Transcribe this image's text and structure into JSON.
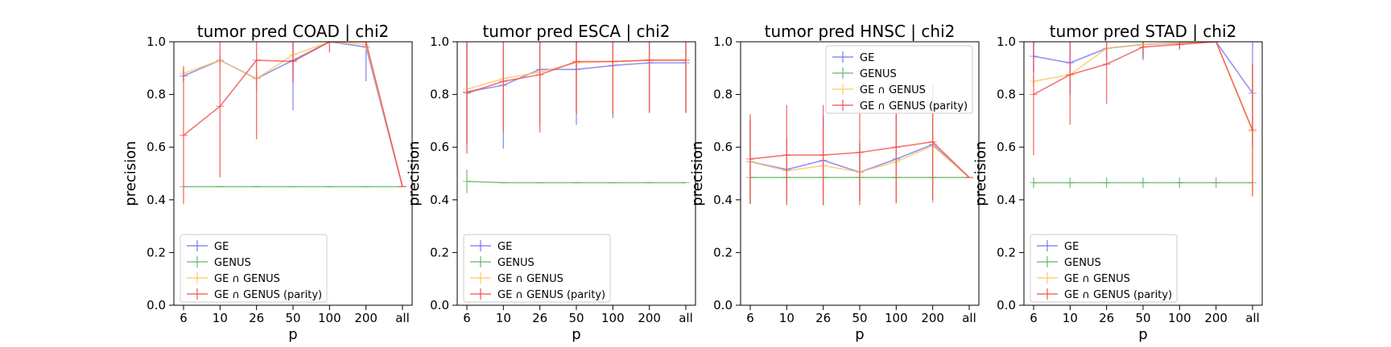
{
  "figure": {
    "categories": [
      "6",
      "10",
      "26",
      "50",
      "100",
      "200",
      "all"
    ],
    "yticks": [
      "0.0",
      "0.2",
      "0.4",
      "0.6",
      "0.8",
      "1.0"
    ],
    "ylim": [
      0,
      1
    ],
    "xlabel": "p",
    "ylabel": "precision",
    "colors": {
      "GE": "#6f6ff2",
      "GENUS": "#5fb35f",
      "GE ∩ GENUS": "#ffc35a",
      "GE ∩ GENUS (parity)": "#f24646"
    }
  },
  "chart_data": [
    {
      "type": "line",
      "title": "tumor pred COAD | chi2",
      "categories": [
        "6",
        "10",
        "26",
        "50",
        "100",
        "200",
        "all"
      ],
      "xlabel": "p",
      "ylabel": "precision",
      "ylim": [
        0,
        1
      ],
      "legend_position": "lower-left",
      "series": [
        {
          "name": "GE",
          "values": [
            0.87,
            0.93,
            0.86,
            0.93,
            1.0,
            0.98,
            0.45
          ],
          "err": [
            0.02,
            0.01,
            0.02,
            0.19,
            0.0,
            0.13,
            0.0
          ]
        },
        {
          "name": "GENUS",
          "values": [
            0.45,
            0.45,
            0.45,
            0.45,
            0.45,
            0.45,
            0.45
          ],
          "err": [
            0,
            0,
            0,
            0,
            0,
            0,
            0
          ]
        },
        {
          "name": "GE ∩ GENUS",
          "values": [
            0.88,
            0.93,
            0.86,
            0.95,
            1.0,
            0.99,
            0.45
          ],
          "err": [
            0.03,
            0.02,
            0.05,
            0.02,
            0.02,
            0.02,
            0.0
          ]
        },
        {
          "name": "GE ∩ GENUS (parity)",
          "values": [
            0.645,
            0.755,
            0.93,
            0.925,
            1.0,
            1.0,
            0.45
          ],
          "err": [
            0.26,
            0.27,
            0.3,
            0.08,
            0.04,
            0.02,
            0.0
          ]
        }
      ]
    },
    {
      "type": "line",
      "title": "tumor pred ESCA | chi2",
      "categories": [
        "6",
        "10",
        "26",
        "50",
        "100",
        "200",
        "all"
      ],
      "xlabel": "p",
      "ylabel": "precision",
      "ylim": [
        0,
        1
      ],
      "legend_position": "lower-left",
      "series": [
        {
          "name": "GE",
          "values": [
            0.81,
            0.835,
            0.895,
            0.895,
            0.91,
            0.92,
            0.92
          ],
          "err": [
            0.2,
            0.24,
            0.21,
            0.21,
            0.2,
            0.19,
            0.19
          ]
        },
        {
          "name": "GENUS",
          "values": [
            0.47,
            0.465,
            0.465,
            0.465,
            0.465,
            0.465,
            0.465
          ],
          "err": [
            0.045,
            0.0,
            0.0,
            0.0,
            0.0,
            0.0,
            0.0
          ]
        },
        {
          "name": "GE ∩ GENUS",
          "values": [
            0.82,
            0.86,
            0.885,
            0.92,
            0.925,
            0.93,
            0.93
          ],
          "err": [
            0.2,
            0.2,
            0.2,
            0.2,
            0.2,
            0.2,
            0.2
          ]
        },
        {
          "name": "GE ∩ GENUS (parity)",
          "values": [
            0.805,
            0.85,
            0.875,
            0.925,
            0.925,
            0.93,
            0.93
          ],
          "err": [
            0.23,
            0.19,
            0.22,
            0.2,
            0.2,
            0.2,
            0.2
          ]
        }
      ]
    },
    {
      "type": "line",
      "title": "tumor pred HNSC | chi2",
      "categories": [
        "6",
        "10",
        "26",
        "50",
        "100",
        "200",
        "all"
      ],
      "xlabel": "p",
      "ylabel": "precision",
      "ylim": [
        0,
        1
      ],
      "legend_position": "upper-right",
      "series": [
        {
          "name": "GE",
          "values": [
            0.545,
            0.515,
            0.55,
            0.505,
            0.555,
            0.61,
            0.485
          ],
          "err": [
            0.16,
            0.12,
            0.17,
            0.11,
            0.17,
            0.22,
            0.0
          ]
        },
        {
          "name": "GENUS",
          "values": [
            0.485,
            0.485,
            0.485,
            0.485,
            0.485,
            0.485,
            0.485
          ],
          "err": [
            0,
            0,
            0,
            0,
            0,
            0,
            0
          ]
        },
        {
          "name": "GE ∩ GENUS",
          "values": [
            0.545,
            0.51,
            0.53,
            0.505,
            0.545,
            0.605,
            0.485
          ],
          "err": [
            0.15,
            0.12,
            0.15,
            0.11,
            0.16,
            0.21,
            0.0
          ]
        },
        {
          "name": "GE ∩ GENUS (parity)",
          "values": [
            0.555,
            0.57,
            0.57,
            0.58,
            0.6,
            0.62,
            0.485
          ],
          "err": [
            0.17,
            0.19,
            0.19,
            0.2,
            0.21,
            0.22,
            0.0
          ]
        }
      ]
    },
    {
      "type": "line",
      "title": "tumor pred STAD | chi2",
      "categories": [
        "6",
        "10",
        "26",
        "50",
        "100",
        "200",
        "all"
      ],
      "xlabel": "p",
      "ylabel": "precision",
      "ylim": [
        0,
        1
      ],
      "legend_position": "lower-left",
      "series": [
        {
          "name": "GE",
          "values": [
            0.945,
            0.92,
            0.975,
            0.99,
            0.995,
            1.0,
            0.805
          ],
          "err": [
            0.06,
            0.12,
            0.04,
            0.06,
            0.02,
            0.0,
            0.2
          ]
        },
        {
          "name": "GENUS",
          "values": [
            0.465,
            0.465,
            0.465,
            0.465,
            0.465,
            0.465,
            0.465
          ],
          "err": [
            0.02,
            0.02,
            0.02,
            0.02,
            0.02,
            0.02,
            0.0
          ]
        },
        {
          "name": "GE ∩ GENUS",
          "values": [
            0.85,
            0.875,
            0.975,
            0.99,
            0.995,
            1.0,
            0.66
          ],
          "err": [
            0.02,
            0.02,
            0.02,
            0.02,
            0.0,
            0.0,
            0.25
          ]
        },
        {
          "name": "GE ∩ GENUS (parity)",
          "values": [
            0.8,
            0.875,
            0.915,
            0.98,
            0.99,
            1.0,
            0.665
          ],
          "err": [
            0.23,
            0.19,
            0.15,
            0.04,
            0.02,
            0.0,
            0.25
          ]
        }
      ]
    }
  ]
}
